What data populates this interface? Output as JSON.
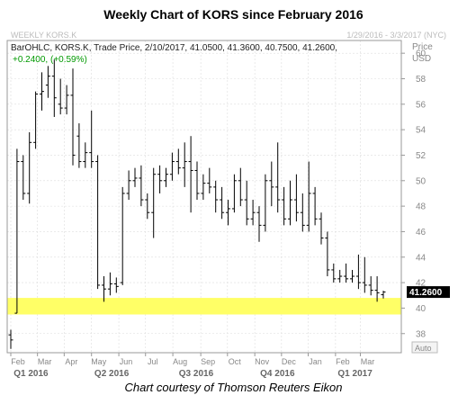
{
  "title": "Weekly Chart of KORS since February 2016",
  "footer": "Chart courtesy of Thomson Reuters Eikon",
  "header": {
    "symbol": "WEEKLY KORS.K",
    "date_range": "1/29/2016 - 3/3/2017 (NYC)",
    "ohlc_line": "BarOHLC, KORS.K, Trade Price, 2/10/2017, 41.0500, 41.3600, 40.7500, 41.2600,",
    "change_line": "+0.2400, (+0.59%)",
    "axis_title": "Price",
    "axis_unit": "USD",
    "last_price_label": "41.2600",
    "auto_label": "Auto"
  },
  "colors": {
    "bars": "#000000",
    "support_band": "#ffff66",
    "grid": "#dddddd",
    "last_price_bg": "#000000",
    "last_price_text": "#ffffff"
  },
  "chart_data": {
    "type": "bar",
    "bar_style": "OHLC",
    "ylim": [
      36.5,
      61
    ],
    "y_ticks": [
      38,
      40,
      42,
      44,
      46,
      48,
      50,
      52,
      54,
      56,
      58,
      60
    ],
    "grid": true,
    "support_band": [
      39.5,
      40.8
    ],
    "last_price": 41.26,
    "month_labels": [
      "Feb",
      "Mar",
      "Apr",
      "May",
      "Jun",
      "Jul",
      "Aug",
      "Sep",
      "Oct",
      "Nov",
      "Dec",
      "Jan",
      "Feb",
      "Mar"
    ],
    "month_week_index": [
      0,
      4.3,
      8.6,
      13,
      17.4,
      21.7,
      26.1,
      30.6,
      34.9,
      39.3,
      43.6,
      47.9,
      52.3,
      56.3
    ],
    "quarter_labels": [
      "Q1 2016",
      "Q2 2016",
      "Q3 2016",
      "Q4 2016",
      "Q1 2017"
    ],
    "quarter_week_index": [
      1.8,
      14.8,
      28.4,
      41.5,
      54.0
    ],
    "weeks": [
      {
        "o": 37.9,
        "h": 38.3,
        "l": 36.8,
        "c": 37.5
      },
      {
        "o": 39.6,
        "h": 52.5,
        "l": 39.6,
        "c": 51.5
      },
      {
        "o": 51.5,
        "h": 52.0,
        "l": 48.5,
        "c": 49.0
      },
      {
        "o": 49.0,
        "h": 53.8,
        "l": 48.2,
        "c": 53.0
      },
      {
        "o": 53.0,
        "h": 57.0,
        "l": 52.5,
        "c": 56.8
      },
      {
        "o": 56.8,
        "h": 58.5,
        "l": 55.5,
        "c": 57.0
      },
      {
        "o": 57.5,
        "h": 59.0,
        "l": 56.5,
        "c": 58.2
      },
      {
        "o": 58.2,
        "h": 59.5,
        "l": 55.0,
        "c": 56.5
      },
      {
        "o": 56.0,
        "h": 58.0,
        "l": 55.2,
        "c": 55.7
      },
      {
        "o": 55.7,
        "h": 57.5,
        "l": 55.2,
        "c": 56.7
      },
      {
        "o": 56.7,
        "h": 58.8,
        "l": 51.2,
        "c": 52.0
      },
      {
        "o": 53.5,
        "h": 54.5,
        "l": 51.0,
        "c": 51.5
      },
      {
        "o": 51.5,
        "h": 53.0,
        "l": 51.0,
        "c": 52.2
      },
      {
        "o": 52.2,
        "h": 55.5,
        "l": 51.0,
        "c": 51.5
      },
      {
        "o": 51.5,
        "h": 52.0,
        "l": 41.5,
        "c": 41.8
      },
      {
        "o": 41.8,
        "h": 42.5,
        "l": 40.5,
        "c": 41.5
      },
      {
        "o": 41.5,
        "h": 42.8,
        "l": 41.0,
        "c": 41.9
      },
      {
        "o": 41.9,
        "h": 42.4,
        "l": 41.2,
        "c": 41.7
      },
      {
        "o": 42.0,
        "h": 49.5,
        "l": 41.8,
        "c": 49.0
      },
      {
        "o": 49.0,
        "h": 50.8,
        "l": 48.5,
        "c": 50.0
      },
      {
        "o": 50.0,
        "h": 51.0,
        "l": 49.5,
        "c": 50.2
      },
      {
        "o": 50.2,
        "h": 51.2,
        "l": 48.0,
        "c": 48.5
      },
      {
        "o": 48.5,
        "h": 49.0,
        "l": 47.0,
        "c": 47.5
      },
      {
        "o": 47.5,
        "h": 51.0,
        "l": 45.5,
        "c": 50.5
      },
      {
        "o": 50.5,
        "h": 51.2,
        "l": 49.0,
        "c": 50.0
      },
      {
        "o": 50.0,
        "h": 51.0,
        "l": 49.5,
        "c": 50.5
      },
      {
        "o": 50.5,
        "h": 52.2,
        "l": 50.0,
        "c": 51.5
      },
      {
        "o": 51.5,
        "h": 52.5,
        "l": 50.5,
        "c": 51.0
      },
      {
        "o": 51.0,
        "h": 53.0,
        "l": 49.5,
        "c": 51.5
      },
      {
        "o": 51.5,
        "h": 53.5,
        "l": 47.5,
        "c": 50.8
      },
      {
        "o": 50.8,
        "h": 51.5,
        "l": 48.5,
        "c": 49.0
      },
      {
        "o": 49.0,
        "h": 50.5,
        "l": 48.5,
        "c": 49.8
      },
      {
        "o": 49.8,
        "h": 51.0,
        "l": 49.0,
        "c": 49.5
      },
      {
        "o": 49.5,
        "h": 50.0,
        "l": 47.5,
        "c": 48.5
      },
      {
        "o": 48.5,
        "h": 49.5,
        "l": 47.0,
        "c": 47.5
      },
      {
        "o": 47.5,
        "h": 48.5,
        "l": 46.5,
        "c": 47.8
      },
      {
        "o": 47.8,
        "h": 50.5,
        "l": 47.5,
        "c": 50.0
      },
      {
        "o": 50.0,
        "h": 51.0,
        "l": 48.0,
        "c": 48.5
      },
      {
        "o": 48.5,
        "h": 50.0,
        "l": 46.5,
        "c": 47.0
      },
      {
        "o": 47.0,
        "h": 48.5,
        "l": 46.5,
        "c": 47.5
      },
      {
        "o": 47.5,
        "h": 48.0,
        "l": 45.2,
        "c": 46.5
      },
      {
        "o": 46.5,
        "h": 50.5,
        "l": 46.0,
        "c": 50.0
      },
      {
        "o": 50.0,
        "h": 51.5,
        "l": 48.0,
        "c": 49.5
      },
      {
        "o": 49.5,
        "h": 53.0,
        "l": 47.5,
        "c": 48.5
      },
      {
        "o": 48.5,
        "h": 49.5,
        "l": 46.5,
        "c": 47.0
      },
      {
        "o": 47.0,
        "h": 50.0,
        "l": 46.5,
        "c": 48.5
      },
      {
        "o": 48.5,
        "h": 50.5,
        "l": 46.8,
        "c": 47.5
      },
      {
        "o": 47.5,
        "h": 49.0,
        "l": 46.0,
        "c": 46.5
      },
      {
        "o": 46.5,
        "h": 51.5,
        "l": 46.0,
        "c": 49.0
      },
      {
        "o": 49.0,
        "h": 49.5,
        "l": 46.5,
        "c": 47.0
      },
      {
        "o": 47.0,
        "h": 47.5,
        "l": 45.0,
        "c": 45.5
      },
      {
        "o": 45.5,
        "h": 46.0,
        "l": 42.5,
        "c": 43.0
      },
      {
        "o": 43.0,
        "h": 43.5,
        "l": 42.0,
        "c": 42.3
      },
      {
        "o": 42.3,
        "h": 43.0,
        "l": 42.0,
        "c": 42.5
      },
      {
        "o": 42.5,
        "h": 43.5,
        "l": 42.0,
        "c": 42.3
      },
      {
        "o": 42.3,
        "h": 43.0,
        "l": 42.0,
        "c": 42.5
      },
      {
        "o": 42.5,
        "h": 44.2,
        "l": 41.5,
        "c": 42.0
      },
      {
        "o": 42.0,
        "h": 44.0,
        "l": 41.2,
        "c": 41.8
      },
      {
        "o": 41.8,
        "h": 42.5,
        "l": 41.0,
        "c": 41.4
      },
      {
        "o": 41.4,
        "h": 42.5,
        "l": 40.5,
        "c": 41.2
      },
      {
        "o": 41.05,
        "h": 41.36,
        "l": 40.75,
        "c": 41.26
      }
    ]
  }
}
